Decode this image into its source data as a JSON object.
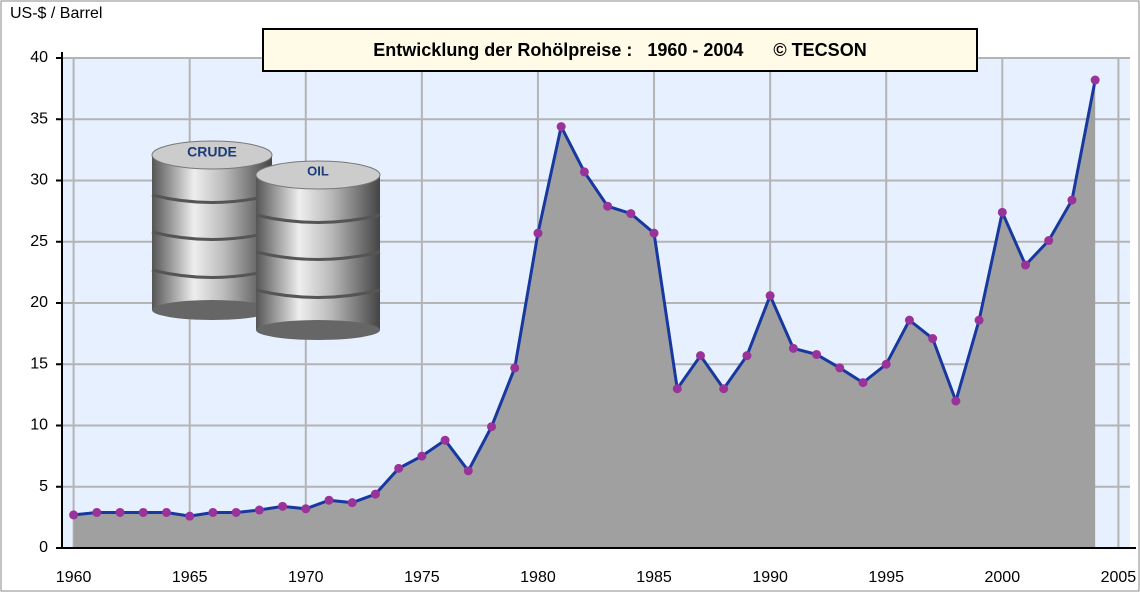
{
  "chart_data": {
    "type": "area",
    "title": "Entwicklung der Rohölpreise :   1960 - 2004      © TECSON",
    "y_label": "US-$ / Barrel",
    "image_labels": [
      "CRUDE",
      "OIL"
    ],
    "x": [
      1960,
      1961,
      1962,
      1963,
      1964,
      1965,
      1966,
      1967,
      1968,
      1969,
      1970,
      1971,
      1972,
      1973,
      1974,
      1975,
      1976,
      1977,
      1978,
      1979,
      1980,
      1981,
      1982,
      1983,
      1984,
      1985,
      1986,
      1987,
      1988,
      1989,
      1990,
      1991,
      1992,
      1993,
      1994,
      1995,
      1996,
      1997,
      1998,
      1999,
      2000,
      2001,
      2002,
      2003,
      2004
    ],
    "values": [
      2.7,
      2.9,
      2.9,
      2.9,
      2.9,
      2.6,
      2.9,
      2.9,
      3.1,
      3.4,
      3.2,
      3.9,
      3.7,
      4.4,
      6.5,
      7.5,
      8.8,
      6.3,
      9.9,
      14.7,
      25.7,
      34.4,
      30.7,
      27.9,
      27.3,
      25.7,
      13.0,
      15.7,
      13.0,
      15.7,
      20.6,
      16.3,
      15.8,
      14.7,
      13.5,
      15.0,
      18.6,
      17.1,
      12.0,
      18.6,
      27.4,
      23.1,
      25.1,
      28.4,
      38.2
    ],
    "line_color": "#1838a0",
    "marker_color": "#993399",
    "fill_color": "#a0a0a0",
    "plot_background": "#e6f0ff",
    "xlim": [
      1959.5,
      2005.5
    ],
    "ylim": [
      0,
      40
    ],
    "xticks": [
      1960,
      1965,
      1970,
      1975,
      1980,
      1985,
      1990,
      1995,
      2000,
      2005
    ],
    "yticks": [
      0,
      5,
      10,
      15,
      20,
      25,
      30,
      35,
      40
    ],
    "grid": true
  }
}
